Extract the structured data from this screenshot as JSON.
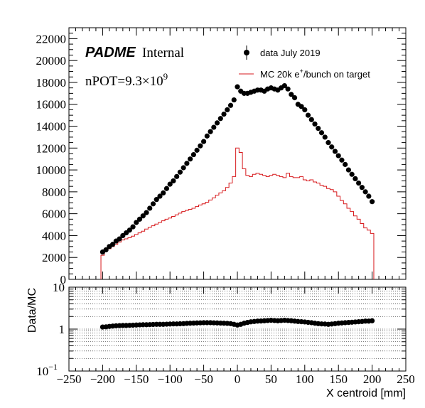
{
  "chart_data": [
    {
      "type": "scatter",
      "panel": "main",
      "header": {
        "brand": "PADME",
        "tag": "Internal"
      },
      "annotation": {
        "prefix": "nPOT=9.3×10",
        "exponent": "9"
      },
      "legend": {
        "placement": "top-right",
        "data_label": "data July 2019",
        "mc_label_prefix": "MC 20k e",
        "mc_label_sup": "+",
        "mc_label_suffix": "/bunch on target"
      },
      "xlim": [
        -250,
        250
      ],
      "ylim": [
        0,
        23000
      ],
      "xticks": [
        "−250",
        "−200",
        "−150",
        "−100",
        "−50",
        "0",
        "50",
        "100",
        "150",
        "200",
        "250"
      ],
      "yticks": [
        "0",
        "2000",
        "4000",
        "6000",
        "8000",
        "10000",
        "12000",
        "14000",
        "16000",
        "18000",
        "20000",
        "22000"
      ],
      "colors": {
        "data": "#000000",
        "mc": "#d7191c"
      },
      "series": [
        {
          "name": "data July 2019",
          "style": "markers",
          "x": [
            -200,
            -195,
            -190,
            -185,
            -180,
            -175,
            -170,
            -165,
            -160,
            -155,
            -150,
            -145,
            -140,
            -135,
            -130,
            -125,
            -120,
            -115,
            -110,
            -105,
            -100,
            -95,
            -90,
            -85,
            -80,
            -75,
            -70,
            -65,
            -60,
            -55,
            -50,
            -45,
            -40,
            -35,
            -30,
            -25,
            -20,
            -15,
            -10,
            -5,
            0,
            5,
            10,
            15,
            20,
            25,
            30,
            35,
            40,
            45,
            50,
            55,
            60,
            65,
            70,
            75,
            80,
            85,
            90,
            95,
            100,
            105,
            110,
            115,
            120,
            125,
            130,
            135,
            140,
            145,
            150,
            155,
            160,
            165,
            170,
            175,
            180,
            185,
            190,
            195,
            200
          ],
          "y": [
            2500,
            2700,
            3000,
            3200,
            3500,
            3700,
            4000,
            4250,
            4500,
            4800,
            5200,
            5500,
            5800,
            6100,
            6500,
            6900,
            7300,
            7600,
            7900,
            8300,
            8700,
            9000,
            9400,
            9800,
            10200,
            10600,
            11000,
            11400,
            11800,
            12200,
            12600,
            13100,
            13500,
            13900,
            14300,
            14700,
            15100,
            15500,
            15900,
            16400,
            17600,
            17200,
            17000,
            17000,
            17100,
            17200,
            17300,
            17300,
            17200,
            17400,
            17500,
            17400,
            17300,
            17500,
            17700,
            17400,
            16900,
            16600,
            16000,
            15800,
            15500,
            15000,
            14600,
            14200,
            13800,
            13400,
            13000,
            12500,
            12100,
            11700,
            11300,
            10900,
            10500,
            10000,
            9600,
            9200,
            8800,
            8400,
            8000,
            7600,
            7100
          ]
        },
        {
          "name": "MC 20k e+/bunch on target",
          "style": "step",
          "x": [
            -200,
            -195,
            -190,
            -185,
            -180,
            -175,
            -170,
            -165,
            -160,
            -155,
            -150,
            -145,
            -140,
            -135,
            -130,
            -125,
            -120,
            -115,
            -110,
            -105,
            -100,
            -95,
            -90,
            -85,
            -80,
            -75,
            -70,
            -65,
            -60,
            -55,
            -50,
            -45,
            -40,
            -35,
            -30,
            -25,
            -20,
            -15,
            -10,
            -5,
            0,
            5,
            10,
            15,
            20,
            25,
            30,
            35,
            40,
            45,
            50,
            55,
            60,
            65,
            70,
            75,
            80,
            85,
            90,
            95,
            100,
            105,
            110,
            115,
            120,
            125,
            130,
            135,
            140,
            145,
            150,
            155,
            160,
            165,
            170,
            175,
            180,
            185,
            190,
            195,
            200
          ],
          "y": [
            2200,
            2600,
            2800,
            3000,
            3200,
            3400,
            3600,
            3700,
            3800,
            3950,
            4100,
            4250,
            4400,
            4600,
            4750,
            4900,
            5050,
            5200,
            5350,
            5500,
            5600,
            5750,
            5900,
            6050,
            6200,
            6300,
            6400,
            6500,
            6650,
            6800,
            6900,
            7050,
            7250,
            7450,
            7700,
            7900,
            8100,
            8400,
            8800,
            9400,
            12000,
            11600,
            10100,
            9500,
            9400,
            9600,
            9700,
            9600,
            9500,
            9400,
            9500,
            9600,
            9500,
            9400,
            9300,
            9700,
            9400,
            9300,
            9300,
            9400,
            9100,
            9000,
            9100,
            8900,
            8800,
            8600,
            8500,
            8300,
            8200,
            8000,
            7600,
            7200,
            6900,
            6500,
            6200,
            5800,
            5500,
            5100,
            4700,
            4500,
            4200
          ]
        }
      ]
    },
    {
      "type": "scatter",
      "panel": "ratio",
      "xlabel": "X centroid [mm]",
      "ylabel": "Data/MC",
      "yscale": "log",
      "xlim": [
        -250,
        250
      ],
      "ylim": [
        0.1,
        10
      ],
      "xticks": [
        "−250",
        "−200",
        "−150",
        "−100",
        "−50",
        "0",
        "50",
        "100",
        "150",
        "200",
        "250"
      ],
      "yticks": [
        {
          "value": 10,
          "base": "10",
          "exp": ""
        },
        {
          "value": 1,
          "base": "1",
          "exp": ""
        },
        {
          "value": 0.1,
          "base": "10",
          "exp": "−1"
        }
      ],
      "grid": true,
      "series": [
        {
          "name": "",
          "style": "markers",
          "x": [
            -200,
            -195,
            -190,
            -185,
            -180,
            -175,
            -170,
            -165,
            -160,
            -155,
            -150,
            -145,
            -140,
            -135,
            -130,
            -125,
            -120,
            -115,
            -110,
            -105,
            -100,
            -95,
            -90,
            -85,
            -80,
            -75,
            -70,
            -65,
            -60,
            -55,
            -50,
            -45,
            -40,
            -35,
            -30,
            -25,
            -20,
            -15,
            -10,
            -5,
            0,
            5,
            10,
            15,
            20,
            25,
            30,
            35,
            40,
            45,
            50,
            55,
            60,
            65,
            70,
            75,
            80,
            85,
            90,
            95,
            100,
            105,
            110,
            115,
            120,
            125,
            130,
            135,
            140,
            145,
            150,
            155,
            160,
            165,
            170,
            175,
            180,
            185,
            190,
            195,
            200
          ],
          "y": [
            1.12,
            1.13,
            1.16,
            1.18,
            1.2,
            1.21,
            1.22,
            1.22,
            1.23,
            1.24,
            1.25,
            1.26,
            1.27,
            1.27,
            1.28,
            1.29,
            1.3,
            1.3,
            1.3,
            1.31,
            1.32,
            1.33,
            1.33,
            1.34,
            1.35,
            1.37,
            1.38,
            1.39,
            1.4,
            1.41,
            1.42,
            1.42,
            1.42,
            1.41,
            1.4,
            1.39,
            1.38,
            1.37,
            1.35,
            1.3,
            1.25,
            1.3,
            1.38,
            1.44,
            1.49,
            1.52,
            1.55,
            1.56,
            1.58,
            1.6,
            1.62,
            1.6,
            1.58,
            1.6,
            1.62,
            1.6,
            1.58,
            1.55,
            1.52,
            1.5,
            1.48,
            1.45,
            1.42,
            1.38,
            1.35,
            1.33,
            1.32,
            1.3,
            1.32,
            1.35,
            1.38,
            1.4,
            1.42,
            1.44,
            1.46,
            1.48,
            1.5,
            1.52,
            1.55,
            1.55,
            1.58
          ]
        }
      ]
    }
  ]
}
